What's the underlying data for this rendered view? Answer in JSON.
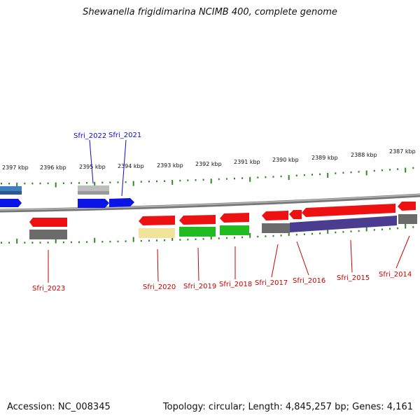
{
  "title": "Shewanella frigidimarina NCIMB 400, complete genome",
  "footer": {
    "accession": "Accession: NC_008345",
    "summary": "Topology: circular; Length: 4,845,257 bp; Genes: 4,161"
  },
  "scale_labels": [
    "2397 kbp",
    "2396 kbp",
    "2395 kbp",
    "2394 kbp",
    "2393 kbp",
    "2392 kbp",
    "2391 kbp",
    "2390 kbp",
    "2389 kbp",
    "2388 kbp",
    "2387 kbp"
  ],
  "gene_labels_top": [
    "Sfri_2022",
    "Sfri_2021"
  ],
  "gene_labels_bottom": [
    "Sfri_2023",
    "Sfri_2020",
    "Sfri_2019",
    "Sfri_2018",
    "Sfri_2017",
    "Sfri_2016",
    "Sfri_2015",
    "Sfri_2014"
  ],
  "colors": {
    "forward_gene": "#0a14e6",
    "reverse_gene": "#ee1111",
    "pseudo_gene": "#bdbdbd",
    "track_gray": "#6b6b6b",
    "track_green": "#22bb22",
    "track_yellow": "#f2e39a",
    "track_purple": "#4a3d8f",
    "tick_green": "#2d8a1e"
  }
}
